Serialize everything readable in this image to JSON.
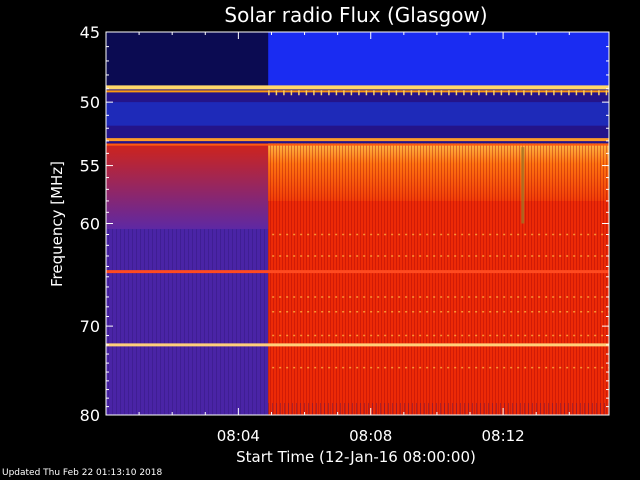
{
  "chart_data": {
    "type": "heatmap",
    "title": "Solar radio Flux (Glasgow)",
    "xlabel": "Start Time (12-Jan-16 08:00:00)",
    "ylabel": "Frequency [MHz]",
    "x_range_minutes": [
      0,
      15.2
    ],
    "y_range_mhz": [
      45,
      80
    ],
    "y_scale": "log",
    "x_ticks": [
      {
        "minute": 4,
        "label": "08:04"
      },
      {
        "minute": 8,
        "label": "08:08"
      },
      {
        "minute": 12,
        "label": "08:12"
      }
    ],
    "y_ticks": [
      {
        "mhz": 45,
        "label": "45"
      },
      {
        "mhz": 50,
        "label": "50"
      },
      {
        "mhz": 55,
        "label": "55"
      },
      {
        "mhz": 60,
        "label": "60"
      },
      {
        "mhz": 70,
        "label": "70"
      },
      {
        "mhz": 80,
        "label": "80"
      }
    ],
    "onset_minute": 4.9,
    "regions": [
      {
        "name": "top-band-pre",
        "freq": [
          45,
          48.8
        ],
        "time": [
          0,
          4.9
        ],
        "color": "#0b0b52"
      },
      {
        "name": "top-band-post",
        "freq": [
          45,
          48.8
        ],
        "time": [
          4.9,
          15.2
        ],
        "color": "#1a2cf2"
      },
      {
        "name": "low-band-pre",
        "freq": [
          53.2,
          80
        ],
        "time": [
          0,
          4.9
        ],
        "color": "#4a24a6"
      },
      {
        "name": "low-band-post",
        "freq": [
          53.2,
          80
        ],
        "time": [
          4.9,
          15.2
        ],
        "color": "#ec2a06"
      }
    ],
    "lines": [
      {
        "mhz": 48.9,
        "color": "#ffd86a",
        "width": 4
      },
      {
        "mhz": 49.2,
        "color": "#ff9a10",
        "width": 2
      },
      {
        "mhz": 52.9,
        "color": "#ff9c2a",
        "width": 3
      },
      {
        "mhz": 53.3,
        "color": "#ff5a10",
        "width": 2
      },
      {
        "mhz": 64.5,
        "color": "#ff4a20",
        "width": 3
      },
      {
        "mhz": 72.0,
        "color": "#ffcf7a",
        "width": 3
      }
    ],
    "colors": {
      "background": "#000000",
      "plot_frame": "#ffffff"
    }
  },
  "footer": {
    "updated": "Updated Thu Feb 22 01:13:10 2018"
  }
}
